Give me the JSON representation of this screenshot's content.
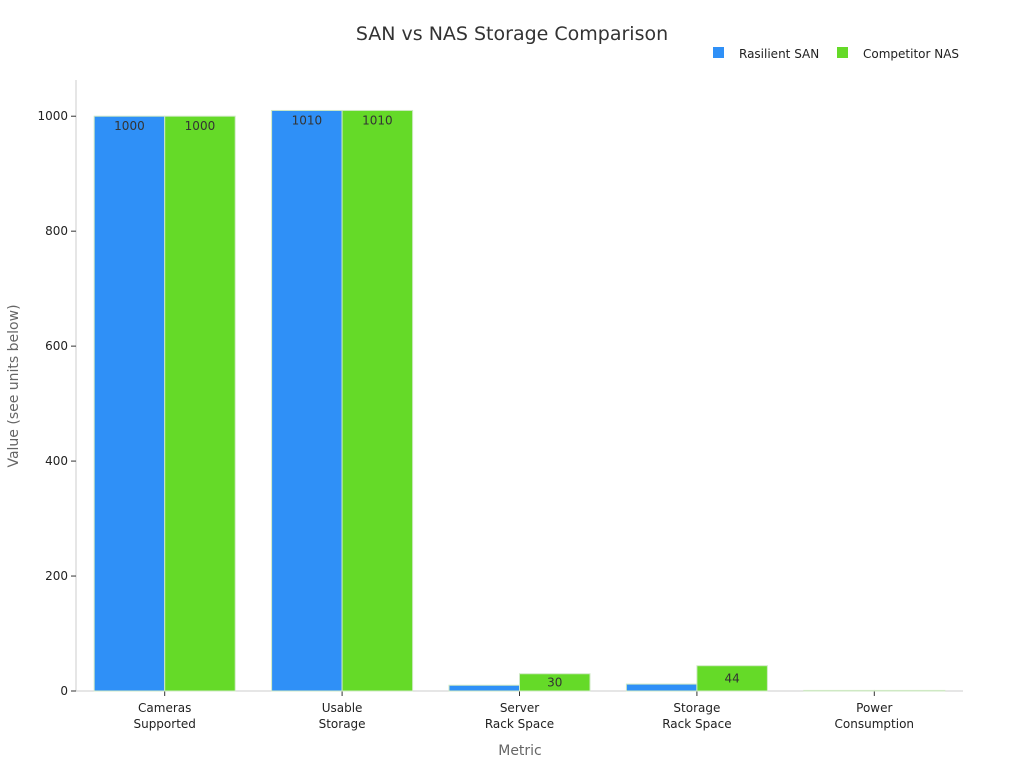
{
  "chart_data": {
    "type": "bar",
    "title": "SAN vs NAS Storage Comparison",
    "xlabel": "Metric",
    "ylabel": "Value (see units below)",
    "categories": [
      [
        "Cameras",
        "Supported"
      ],
      [
        "Usable",
        "Storage"
      ],
      [
        "Server",
        "Rack Space"
      ],
      [
        "Storage",
        "Rack Space"
      ],
      [
        "Power",
        "Consumption"
      ]
    ],
    "series": [
      {
        "name": "Rasilient SAN",
        "color": "#2f90f7",
        "values": [
          1000,
          1010,
          10,
          12,
          1
        ]
      },
      {
        "name": "Competitor NAS",
        "color": "#65da28",
        "values": [
          1000,
          1010,
          30,
          44,
          1
        ]
      }
    ],
    "ylim": [
      0,
      1063
    ],
    "yticks": [
      0,
      200,
      400,
      600,
      800,
      1000
    ],
    "grid": false,
    "legend": "top-right"
  }
}
